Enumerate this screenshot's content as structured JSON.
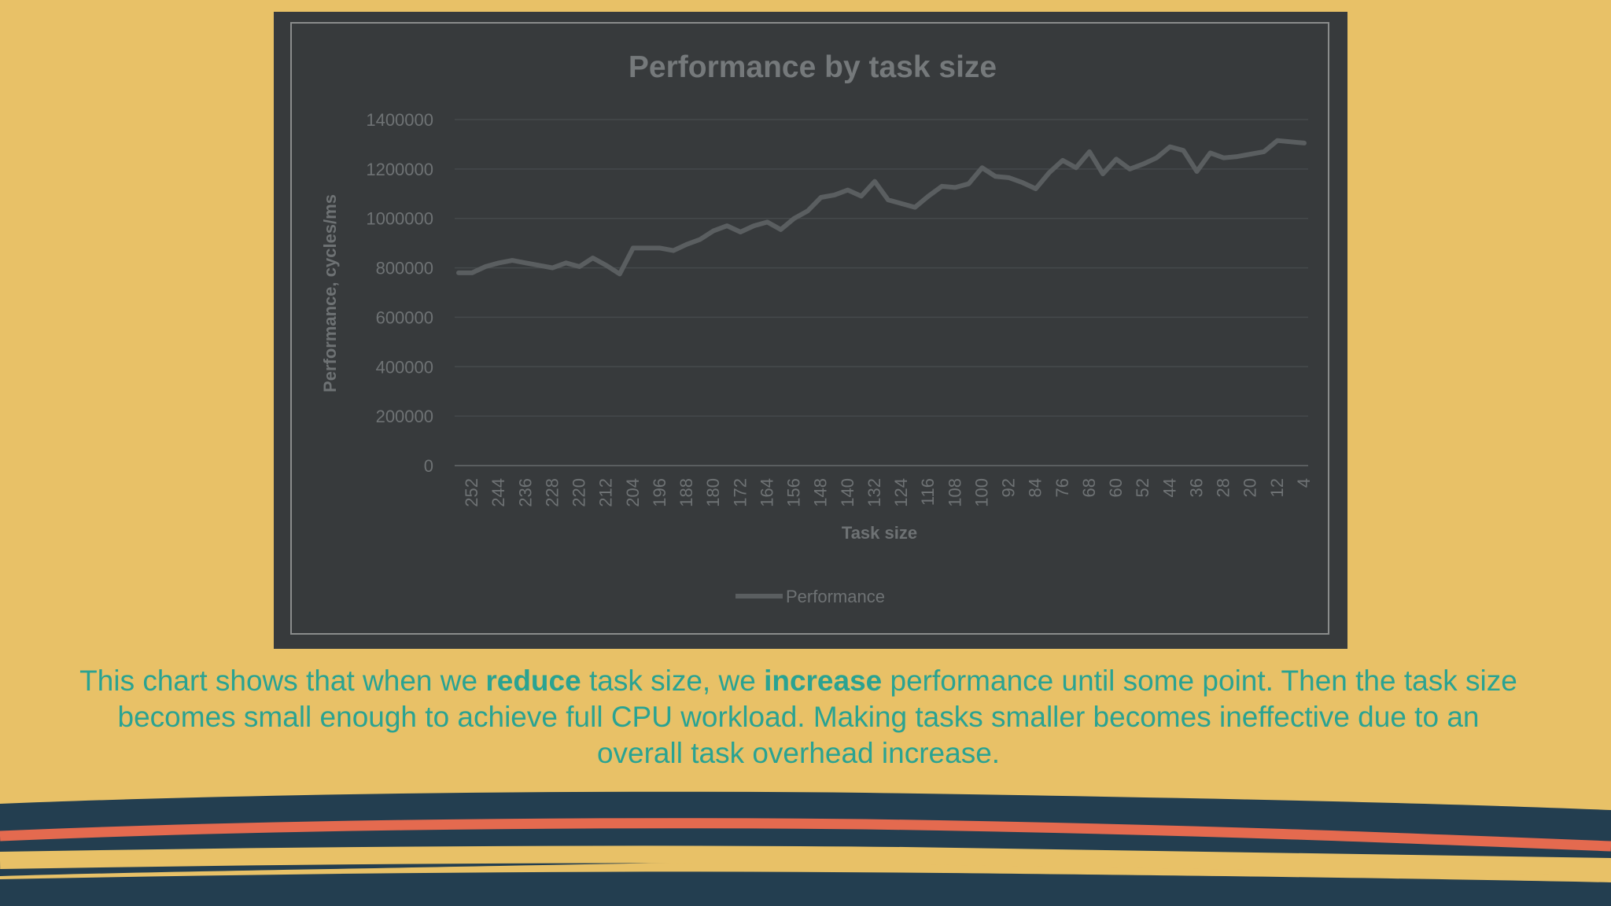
{
  "chart_data": {
    "type": "line",
    "title": "Performance by task size",
    "xlabel": "Task size",
    "ylabel": "Performance, cycles/ms",
    "ylim": [
      0,
      1400000
    ],
    "yticks": [
      "0",
      "200000",
      "400000",
      "600000",
      "800000",
      "1000000",
      "1200000",
      "1400000"
    ],
    "xtick_labels": [
      "252",
      "244",
      "236",
      "228",
      "220",
      "212",
      "204",
      "196",
      "188",
      "180",
      "172",
      "164",
      "156",
      "148",
      "140",
      "132",
      "124",
      "116",
      "108",
      "100",
      "92",
      "84",
      "76",
      "68",
      "60",
      "52",
      "44",
      "36",
      "28",
      "20",
      "12",
      "4"
    ],
    "grid": true,
    "legend_position": "bottom",
    "series": [
      {
        "name": "Performance",
        "color": "#5A5E60",
        "x": [
          256,
          252,
          248,
          244,
          240,
          236,
          232,
          228,
          224,
          220,
          216,
          212,
          208,
          204,
          200,
          196,
          192,
          188,
          184,
          180,
          176,
          172,
          168,
          164,
          160,
          156,
          152,
          148,
          144,
          140,
          136,
          132,
          128,
          124,
          120,
          116,
          112,
          108,
          104,
          100,
          96,
          92,
          88,
          84,
          80,
          76,
          72,
          68,
          64,
          60,
          56,
          52,
          48,
          44,
          40,
          36,
          32,
          28,
          24,
          20,
          16,
          12,
          8,
          4
        ],
        "values": [
          780000,
          780000,
          805000,
          820000,
          830000,
          820000,
          810000,
          800000,
          820000,
          805000,
          840000,
          810000,
          775000,
          880000,
          880000,
          880000,
          870000,
          895000,
          915000,
          950000,
          970000,
          945000,
          970000,
          985000,
          955000,
          1000000,
          1030000,
          1085000,
          1095000,
          1115000,
          1090000,
          1150000,
          1075000,
          1060000,
          1045000,
          1090000,
          1130000,
          1125000,
          1140000,
          1205000,
          1170000,
          1165000,
          1145000,
          1120000,
          1185000,
          1235000,
          1205000,
          1270000,
          1180000,
          1240000,
          1200000,
          1220000,
          1245000,
          1290000,
          1275000,
          1190000,
          1265000,
          1245000,
          1250000,
          1260000,
          1270000,
          1315000,
          1310000,
          1305000
        ]
      }
    ]
  },
  "caption": {
    "part1": "This chart shows that when we ",
    "bold1": "reduce",
    "part2": " task size, we ",
    "bold2": "increase",
    "part3": " performance until some point. Then the task size becomes small enough to achieve full CPU workload. Making tasks smaller becomes ineffective due to an overall task overhead increase."
  },
  "colors": {
    "background": "#E8C167",
    "chart_background": "#373A3C",
    "caption_text": "#2AA392",
    "wave_navy": "#233E50",
    "wave_coral": "#E46A4F"
  }
}
